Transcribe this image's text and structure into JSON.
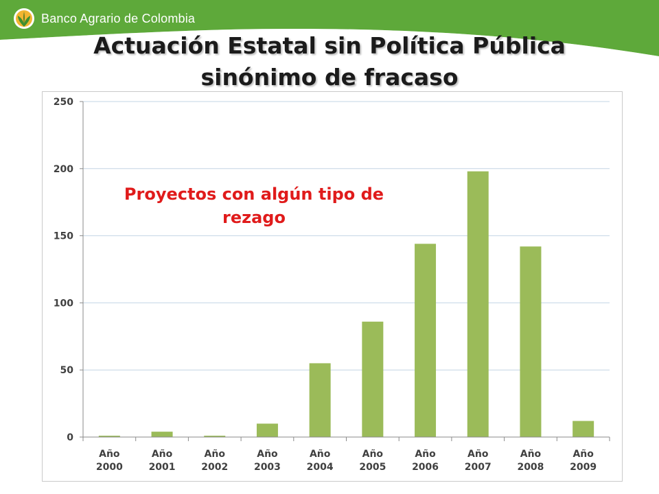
{
  "brand": {
    "name": "Banco Agrario de Colombia"
  },
  "colors": {
    "brand_green": "#5ea93a",
    "bar": "#9bbb59",
    "annotation": "#e01b1b",
    "grid": "#c3d4e4"
  },
  "title": {
    "line1": "Actuación Estatal sin Política Pública",
    "line2": "sinónimo de fracaso"
  },
  "annotation": {
    "line1": "Proyectos con algún tipo de",
    "line2": "rezago"
  },
  "chart_data": {
    "type": "bar",
    "title": "",
    "xlabel": "",
    "ylabel": "",
    "categories": [
      "Año 2000",
      "Año 2001",
      "Año 2002",
      "Año 2003",
      "Año 2004",
      "Año 2005",
      "Año 2006",
      "Año 2007",
      "Año 2008",
      "Año 2009"
    ],
    "values": [
      1,
      4,
      1,
      10,
      55,
      86,
      144,
      198,
      142,
      12
    ],
    "ylim": [
      0,
      250
    ],
    "yticks": [
      0,
      50,
      100,
      150,
      200,
      250
    ],
    "grid": true,
    "legend": "none"
  }
}
